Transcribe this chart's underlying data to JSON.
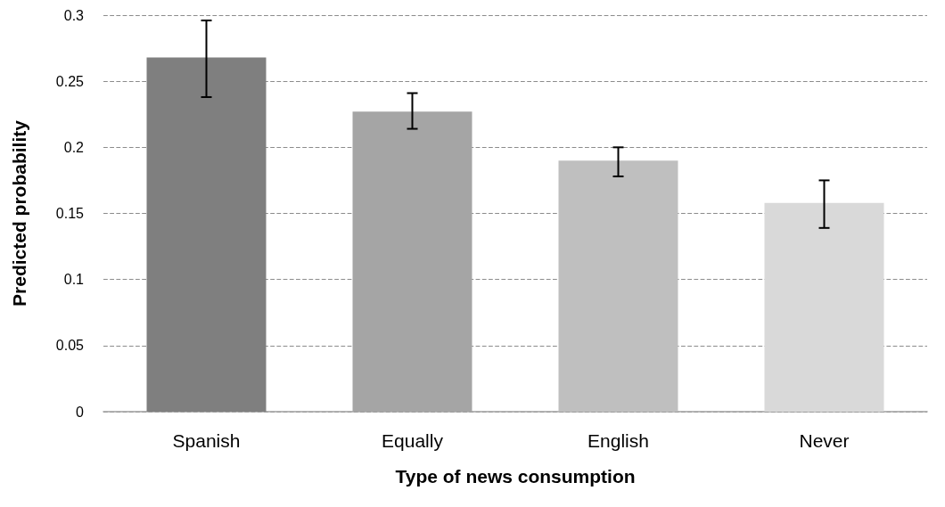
{
  "chart_data": {
    "type": "bar",
    "xlabel": "Type of news consumption",
    "ylabel": "Predicted probability",
    "categories": [
      "Spanish",
      "Equally",
      "English",
      "Never"
    ],
    "values": [
      0.268,
      0.227,
      0.19,
      0.158
    ],
    "colors": [
      "#7f7f7f",
      "#a5a5a5",
      "#bfbfbf",
      "#d9d9d9"
    ],
    "errors": [
      [
        0.238,
        0.296
      ],
      [
        0.214,
        0.241
      ],
      [
        0.178,
        0.2
      ],
      [
        0.139,
        0.175
      ]
    ],
    "ylim": [
      0,
      0.3
    ],
    "yticks": [
      0,
      0.05,
      0.1,
      0.15,
      0.2,
      0.25,
      0.3
    ],
    "grid": "y"
  }
}
